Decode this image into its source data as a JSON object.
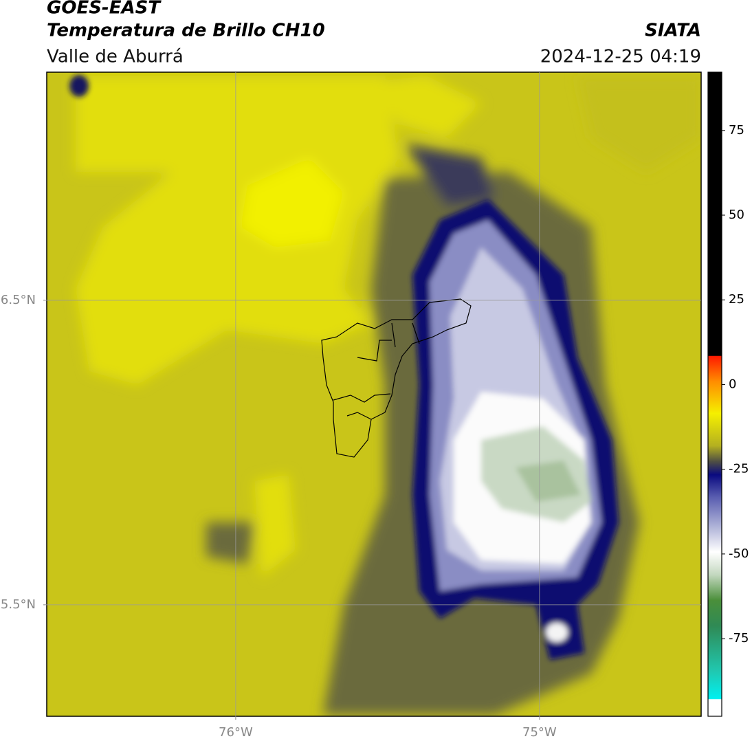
{
  "header": {
    "title": "GOES-EAST",
    "subtitle": "Temperatura de Brillo CH10",
    "region": "Valle de Aburrá",
    "source": "SIATA",
    "timestamp": "2024-12-25 04:19"
  },
  "map": {
    "lonlim": [
      -76.622,
      -74.468
    ],
    "latlim": [
      5.134,
      7.249
    ],
    "lonticks": [
      {
        "value": -76,
        "label": "76°W"
      },
      {
        "value": -75,
        "label": "75°W"
      }
    ],
    "latticks": [
      {
        "value": 5.5,
        "label": "5.5°N"
      },
      {
        "value": 6.5,
        "label": "6.5°N"
      }
    ],
    "grid": true
  },
  "colorbar": {
    "lim": [
      -97.9,
      92.2
    ],
    "ticks": [
      -75,
      -50,
      -25,
      0,
      25,
      50,
      75
    ]
  }
}
